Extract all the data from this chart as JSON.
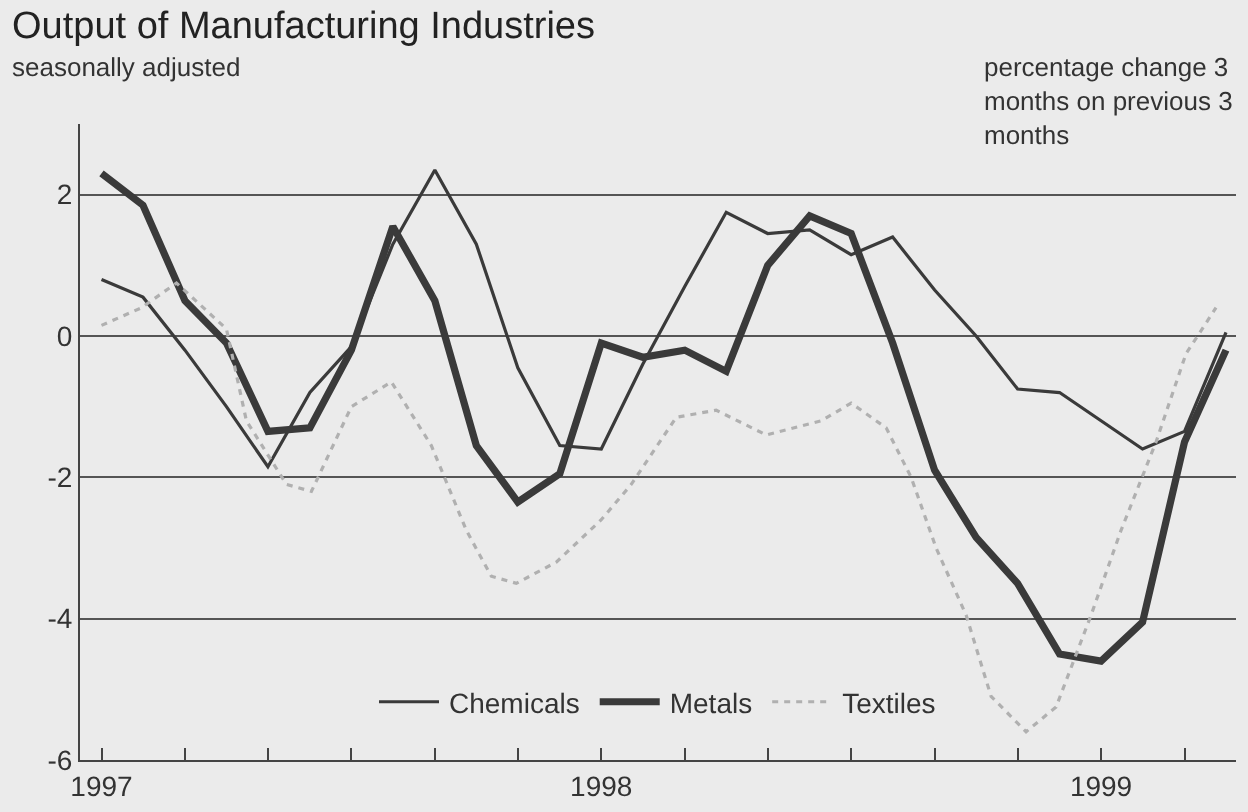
{
  "chart_data": {
    "type": "line",
    "title": "Output of Manufacturing Industries",
    "subtitle": "seasonally adjusted",
    "ylabel": "percentage change 3 months on previous 3 months",
    "xlim": [
      1996.957,
      1999.27
    ],
    "xticks": [
      {
        "value": 1997,
        "label": "1997"
      },
      {
        "value": 1997.167,
        "label": null
      },
      {
        "value": 1997.333,
        "label": null
      },
      {
        "value": 1997.5,
        "label": null
      },
      {
        "value": 1997.667,
        "label": null
      },
      {
        "value": 1997.833,
        "label": null
      },
      {
        "value": 1998,
        "label": "1998"
      },
      {
        "value": 1998.167,
        "label": null
      },
      {
        "value": 1998.333,
        "label": null
      },
      {
        "value": 1998.5,
        "label": null
      },
      {
        "value": 1998.667,
        "label": null
      },
      {
        "value": 1998.833,
        "label": null
      },
      {
        "value": 1999,
        "label": "1999"
      },
      {
        "value": 1999.167,
        "label": null
      }
    ],
    "ylim": [
      -6,
      3
    ],
    "yticks": [
      -6,
      -4,
      -2,
      0,
      2
    ],
    "grid": "y",
    "legend": "bottom",
    "marker": "none",
    "series": [
      {
        "name": "Chemicals",
        "color": "#3a3a3a",
        "line_style": "solid",
        "x": [
          1997,
          1997.083,
          1997.167,
          1997.25,
          1997.333,
          1997.417,
          1997.5,
          1997.583,
          1997.667,
          1997.75,
          1997.833,
          1997.917,
          1998,
          1998.083,
          1998.167,
          1998.25,
          1998.333,
          1998.417,
          1998.5,
          1998.583,
          1998.667,
          1998.75,
          1998.833,
          1998.917,
          1999,
          1999.083,
          1999.167,
          1999.25
        ],
        "values": [
          0.8,
          0.55,
          -0.2,
          -1.0,
          -1.85,
          -0.8,
          -0.15,
          1.3,
          2.35,
          1.3,
          -0.45,
          -1.55,
          -1.6,
          -0.4,
          0.7,
          1.75,
          1.45,
          1.5,
          1.15,
          1.4,
          0.65,
          0,
          -0.75,
          -0.8,
          -1.2,
          -1.6,
          -1.35,
          0.05
        ]
      },
      {
        "name": "Metals",
        "color": "#3a3a3a",
        "line_style": "solid",
        "x": [
          1997,
          1997.083,
          1997.167,
          1997.25,
          1997.333,
          1997.417,
          1997.5,
          1997.583,
          1997.667,
          1997.75,
          1997.833,
          1997.917,
          1998,
          1998.083,
          1998.167,
          1998.25,
          1998.333,
          1998.417,
          1998.5,
          1998.583,
          1998.667,
          1998.75,
          1998.833,
          1998.917,
          1999,
          1999.083,
          1999.167,
          1999.25
        ],
        "values": [
          2.3,
          1.85,
          0.5,
          -0.1,
          -1.35,
          -1.3,
          -0.2,
          1.55,
          0.5,
          -1.55,
          -2.35,
          -1.95,
          -0.1,
          -0.3,
          -0.2,
          -0.5,
          1.0,
          1.7,
          1.45,
          -0.1,
          -1.9,
          -2.85,
          -3.5,
          -4.5,
          -4.6,
          -4.05,
          -1.5,
          -0.2
        ]
      },
      {
        "name": "Textiles",
        "color": "#b0b0b0",
        "line_style": "dotted",
        "x": [
          1997,
          1997.08,
          1997.15,
          1997.25,
          1997.29,
          1997.37,
          1997.42,
          1997.5,
          1997.58,
          1997.66,
          1997.73,
          1997.78,
          1997.83,
          1997.91,
          1998,
          1998.06,
          1998.15,
          1998.23,
          1998.33,
          1998.44,
          1998.5,
          1998.57,
          1998.62,
          1998.67,
          1998.73,
          1998.78,
          1998.85,
          1998.91,
          1998.98,
          1999.04,
          1999.11,
          1999.17,
          1999.23
        ],
        "values": [
          0.15,
          0.4,
          0.75,
          0.1,
          -1.2,
          -2.1,
          -2.2,
          -1.0,
          -0.65,
          -1.55,
          -2.75,
          -3.4,
          -3.5,
          -3.2,
          -2.6,
          -2.1,
          -1.15,
          -1.05,
          -1.4,
          -1.2,
          -0.95,
          -1.3,
          -2.0,
          -3.0,
          -3.95,
          -5.1,
          -5.6,
          -5.25,
          -3.95,
          -2.75,
          -1.5,
          -0.25,
          0.4
        ]
      }
    ]
  }
}
